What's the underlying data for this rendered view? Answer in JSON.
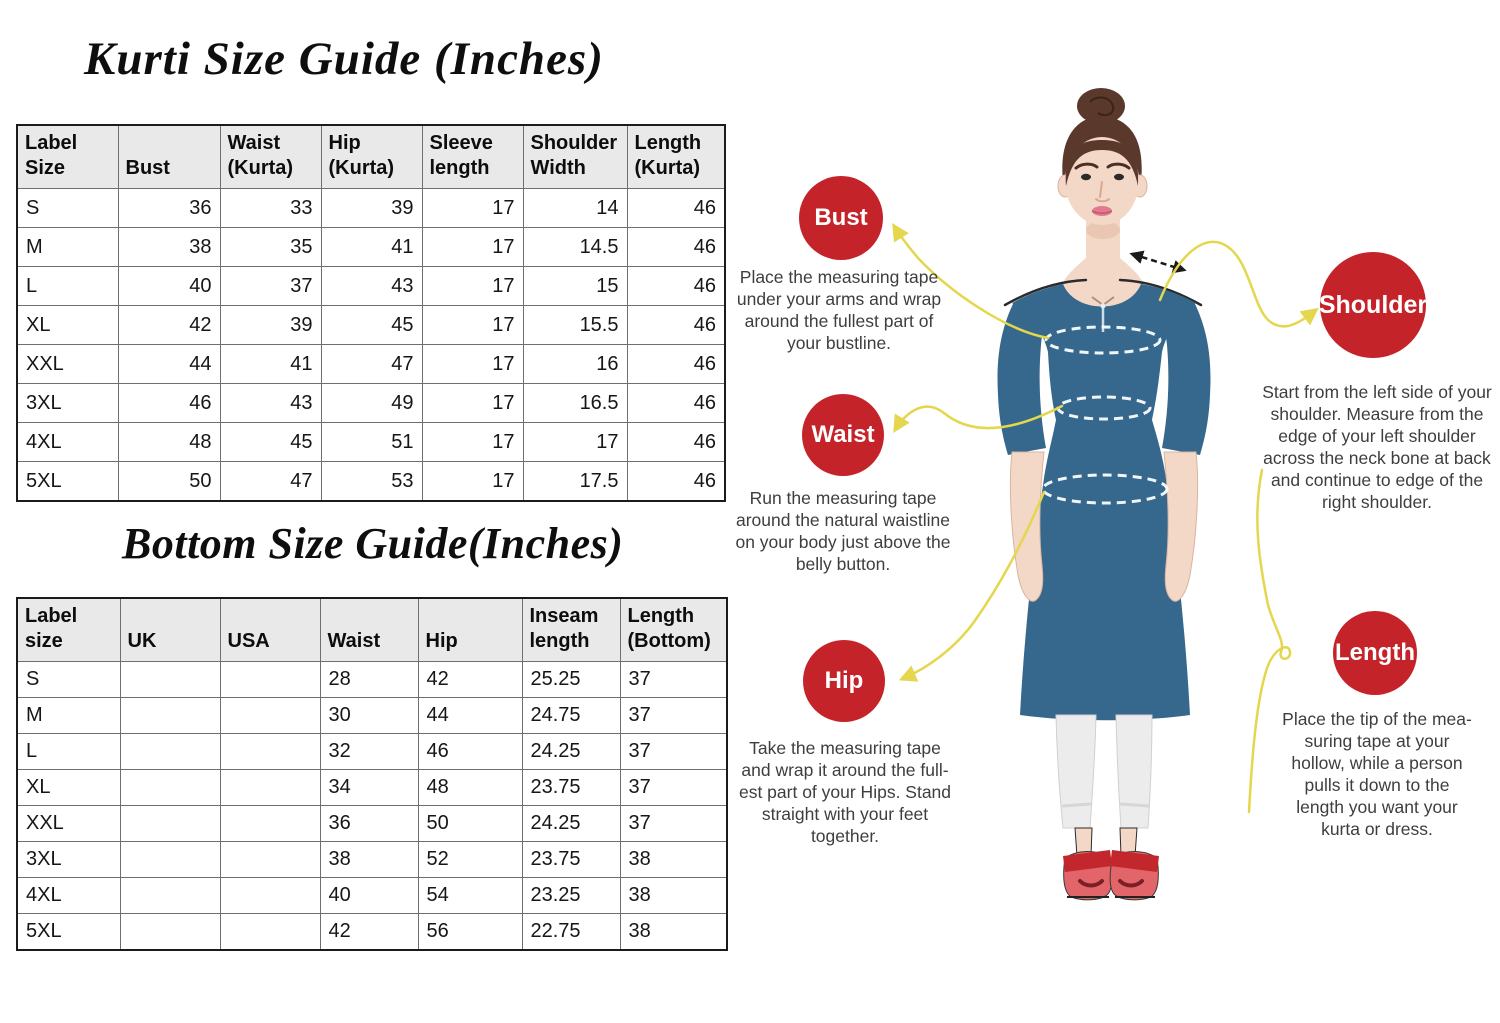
{
  "titles": {
    "kurti": "Kurti Size Guide (Inches)",
    "bottom": "Bottom Size Guide(Inches)"
  },
  "kurti_table": {
    "headers": [
      "Label\nSize",
      "Bust",
      "Waist\n(Kurta)",
      "Hip\n(Kurta)",
      "Sleeve\nlength",
      "Shoulder\nWidth",
      "Length\n(Kurta)"
    ],
    "rows": [
      [
        "S",
        "36",
        "33",
        "39",
        "17",
        "14",
        "46"
      ],
      [
        "M",
        "38",
        "35",
        "41",
        "17",
        "14.5",
        "46"
      ],
      [
        "L",
        "40",
        "37",
        "43",
        "17",
        "15",
        "46"
      ],
      [
        "XL",
        "42",
        "39",
        "45",
        "17",
        "15.5",
        "46"
      ],
      [
        "XXL",
        "44",
        "41",
        "47",
        "17",
        "16",
        "46"
      ],
      [
        "3XL",
        "46",
        "43",
        "49",
        "17",
        "16.5",
        "46"
      ],
      [
        "4XL",
        "48",
        "45",
        "51",
        "17",
        "17",
        "46"
      ],
      [
        "5XL",
        "50",
        "47",
        "53",
        "17",
        "17.5",
        "46"
      ]
    ]
  },
  "bottom_table": {
    "headers": [
      "Label size",
      "UK",
      "USA",
      "Waist",
      "Hip",
      "Inseam\nlength",
      "Length\n(Bottom)"
    ],
    "rows": [
      [
        "S",
        "",
        "",
        "28",
        "42",
        "25.25",
        "37"
      ],
      [
        "M",
        "",
        "",
        "30",
        "44",
        "24.75",
        "37"
      ],
      [
        "L",
        "",
        "",
        "32",
        "46",
        "24.25",
        "37"
      ],
      [
        "XL",
        "",
        "",
        "34",
        "48",
        "23.75",
        "37"
      ],
      [
        "XXL",
        "",
        "",
        "36",
        "50",
        "24.25",
        "37"
      ],
      [
        "3XL",
        "",
        "",
        "38",
        "52",
        "23.75",
        "38"
      ],
      [
        "4XL",
        "",
        "",
        "40",
        "54",
        "23.25",
        "38"
      ],
      [
        "5XL",
        "",
        "",
        "42",
        "56",
        "22.75",
        "38"
      ]
    ]
  },
  "annotations": {
    "bust": {
      "label": "Bust",
      "text": "Place the measuring tape\nunder your arms and wrap\naround the fullest part of\nyour bustline."
    },
    "waist": {
      "label": "Waist",
      "text": "Run the measuring tape\naround the natural waistline\non your body just above the\nbelly button."
    },
    "hip": {
      "label": "Hip",
      "text": "Take the measuring tape\nand wrap it around the full-\nest part of your Hips. Stand\nstraight with your feet\ntogether."
    },
    "shoulder": {
      "label": "Shoulder",
      "text": "Start from the left side of your\nshoulder. Measure from the\nedge of your left shoulder\nacross the neck bone at back\nand continue to edge of the\nright shoulder."
    },
    "length": {
      "label": "Length",
      "text": "Place the tip of the mea-\nsuring tape at your\nhollow, while a person\npulls it down to the\nlength you want your\nkurta or dress."
    }
  },
  "colors": {
    "badge_red": "#c4232a",
    "badge_text": "#ffffff",
    "dress_blue": "#35688c",
    "accent_yellow": "#e4d64d",
    "skin": "#f3d8c7",
    "skin_shade": "#dfb49c",
    "hair": "#5a382b",
    "hair_dark": "#3c2317",
    "pants": "#ececec",
    "pants_shade": "#d6d6d6",
    "shoe": "#e2656a",
    "shoe_strap": "#c1272d",
    "table_header_bg": "#e9e9e9"
  }
}
